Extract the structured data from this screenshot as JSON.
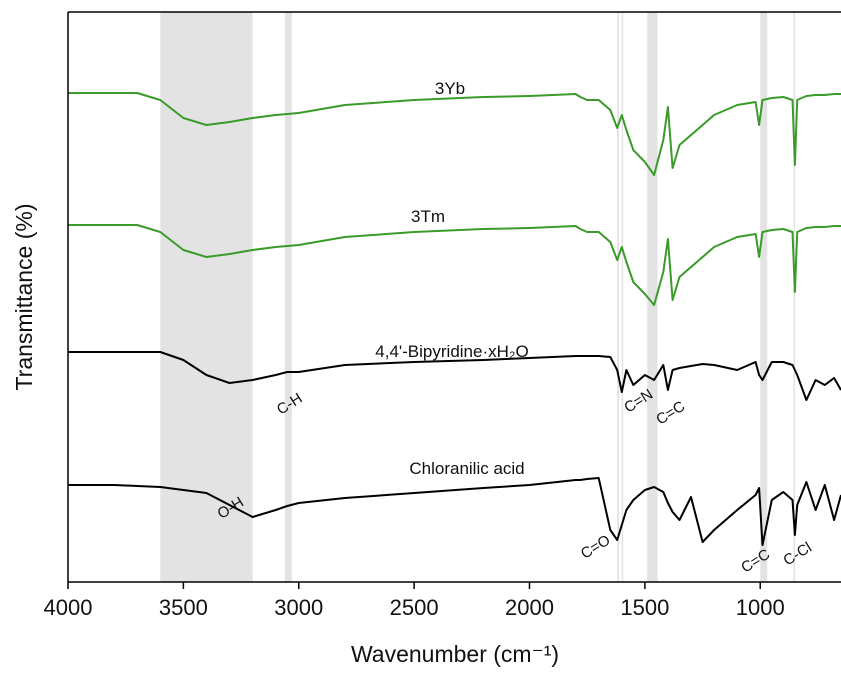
{
  "chart_data": {
    "type": "line",
    "x_label": "Wavenumber (cm⁻¹)",
    "y_label": "Transmittance (%)",
    "xlim": [
      4000,
      650
    ],
    "ylim": [
      0,
      570
    ],
    "xticks": [
      4000,
      3500,
      3000,
      2500,
      2000,
      1500,
      1000
    ],
    "x": [
      4000,
      3800,
      3700,
      3600,
      3500,
      3400,
      3300,
      3200,
      3100,
      3050,
      3000,
      2800,
      2500,
      2200,
      2000,
      1800,
      1780,
      1750,
      1700,
      1650,
      1620,
      1600,
      1580,
      1550,
      1500,
      1460,
      1420,
      1400,
      1380,
      1350,
      1300,
      1250,
      1200,
      1100,
      1020,
      1005,
      990,
      950,
      900,
      860,
      850,
      840,
      800,
      760,
      720,
      680,
      650
    ],
    "series": [
      {
        "name": "3Yb",
        "color": "#3a9a2a",
        "values": [
          489,
          489,
          489,
          482,
          464,
          457,
          460,
          464,
          467,
          468,
          469,
          477,
          482,
          485,
          486,
          488,
          485,
          482,
          482,
          472,
          454,
          467,
          452,
          432,
          420,
          407,
          442,
          475,
          414,
          437,
          447,
          457,
          467,
          477,
          480,
          457,
          482,
          484,
          485,
          482,
          417,
          482,
          486,
          487,
          487,
          488,
          488
        ]
      },
      {
        "name": "3Tm",
        "color": "#3a9a2a",
        "values": [
          357,
          357,
          357,
          350,
          332,
          325,
          328,
          332,
          335,
          336,
          337,
          345,
          350,
          353,
          354,
          356,
          353,
          350,
          350,
          340,
          322,
          335,
          320,
          300,
          288,
          277,
          310,
          343,
          282,
          305,
          315,
          325,
          335,
          345,
          348,
          325,
          350,
          352,
          353,
          350,
          290,
          350,
          354,
          355,
          355,
          356,
          356
        ]
      },
      {
        "name": "4,4'-Bipyridine·xH₂O",
        "color": "#000000",
        "values": [
          230,
          230,
          230,
          230,
          222,
          207,
          199,
          202,
          207,
          210,
          210,
          217,
          220,
          222,
          224,
          226,
          226,
          226,
          226,
          225,
          212,
          190,
          212,
          197,
          207,
          202,
          217,
          192,
          212,
          214,
          216,
          218,
          217,
          212,
          220,
          207,
          202,
          220,
          220,
          217,
          212,
          207,
          182,
          202,
          197,
          204,
          192
        ]
      },
      {
        "name": "Chloranilic acid",
        "color": "#000000",
        "values": [
          97,
          97,
          96,
          95,
          92,
          89,
          77,
          65,
          72,
          76,
          79,
          84,
          89,
          94,
          97,
          102,
          102,
          103,
          104,
          52,
          42,
          57,
          72,
          82,
          92,
          95,
          90,
          79,
          70,
          62,
          85,
          40,
          52,
          72,
          87,
          94,
          37,
          82,
          90,
          82,
          47,
          77,
          100,
          72,
          97,
          62,
          87
        ]
      }
    ],
    "bands": [
      [
        3600,
        3200
      ],
      [
        3060,
        3030
      ],
      [
        1620,
        1612
      ],
      [
        1600,
        1594
      ],
      [
        1490,
        1445
      ],
      [
        1000,
        970
      ],
      [
        856,
        849
      ]
    ],
    "band_color": "#e3e3e3",
    "annotations": [
      "C-H",
      "O-H",
      "C=N",
      "C=C",
      "C=O",
      "C=C",
      "C-Cl"
    ]
  }
}
